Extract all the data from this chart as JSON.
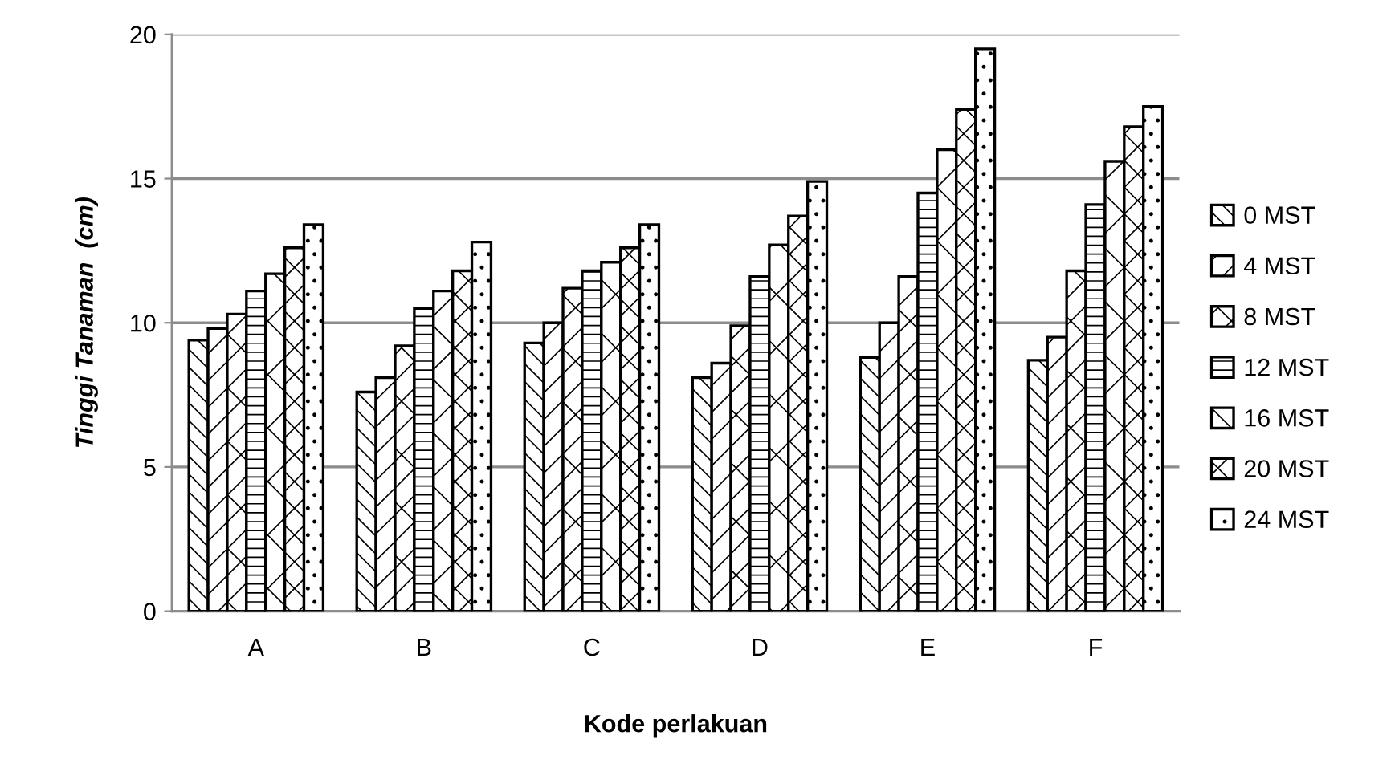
{
  "chart_data": {
    "type": "bar",
    "xlabel": "Kode perlakuan",
    "ylabel": "Tinggi Tanaman  (cm)",
    "categories": [
      "A",
      "B",
      "C",
      "D",
      "E",
      "F"
    ],
    "series": [
      {
        "name": "0 MST",
        "color": "#000000",
        "values": [
          9.4,
          7.6,
          9.3,
          8.1,
          8.8,
          8.7
        ]
      },
      {
        "name": "4 MST",
        "color": "#000000",
        "values": [
          9.8,
          8.1,
          10.0,
          8.6,
          10.0,
          9.5
        ]
      },
      {
        "name": "8 MST",
        "color": "#000000",
        "values": [
          10.3,
          9.2,
          11.2,
          9.9,
          11.6,
          11.8
        ]
      },
      {
        "name": "12 MST",
        "color": "#000000",
        "values": [
          11.1,
          10.5,
          11.8,
          11.6,
          14.5,
          14.1
        ]
      },
      {
        "name": "16 MST",
        "color": "#000000",
        "values": [
          11.7,
          11.1,
          12.1,
          12.7,
          16.0,
          15.6
        ]
      },
      {
        "name": "20 MST",
        "color": "#000000",
        "values": [
          12.6,
          11.8,
          12.6,
          13.7,
          17.4,
          16.8
        ]
      },
      {
        "name": "24 MST",
        "color": "#000000",
        "values": [
          13.4,
          12.8,
          13.4,
          14.9,
          19.5,
          17.5
        ]
      }
    ],
    "ylim": [
      0,
      20
    ],
    "yticks": [
      0,
      5,
      10,
      15,
      20
    ],
    "grid": "y",
    "legend": "right"
  }
}
